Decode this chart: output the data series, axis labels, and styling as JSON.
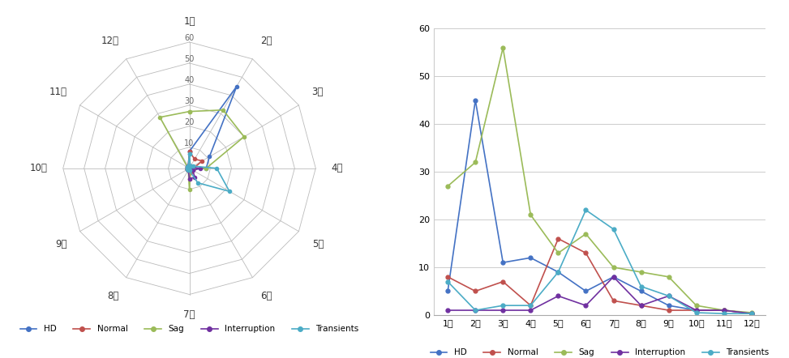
{
  "categories": [
    "1차",
    "2차",
    "3차",
    "4차",
    "5차",
    "6차",
    "7차",
    "8차",
    "9차",
    "10차",
    "11차",
    "12차"
  ],
  "series": {
    "HD": [
      5,
      45,
      11,
      12,
      9,
      5,
      8,
      5,
      2,
      1,
      1,
      0.3
    ],
    "Normal": [
      8,
      5,
      7,
      2,
      16,
      13,
      3,
      2,
      1,
      1,
      1,
      0.3
    ],
    "Sag": [
      27,
      32,
      56,
      21,
      13,
      17,
      10,
      9,
      8,
      2,
      1,
      0.5
    ],
    "Interruption": [
      1,
      1,
      1,
      1,
      4,
      2,
      8,
      2,
      4,
      1,
      1,
      0.3
    ],
    "Transients": [
      7,
      1,
      2,
      2,
      9,
      22,
      18,
      6,
      4,
      0.5,
      0.3,
      0.3
    ]
  },
  "radar_series": {
    "HD": [
      8,
      45,
      11,
      8,
      1,
      1,
      1,
      1,
      1,
      1,
      1,
      1
    ],
    "Normal": [
      8,
      5,
      7,
      2,
      1,
      2,
      5,
      1,
      1,
      1,
      1,
      1
    ],
    "Sag": [
      27,
      32,
      30,
      8,
      1,
      1,
      10,
      1,
      1,
      1,
      1,
      28
    ],
    "Interruption": [
      1,
      1,
      1,
      5,
      2,
      5,
      5,
      1,
      1,
      1,
      1,
      1
    ],
    "Transients": [
      7,
      1,
      2,
      13,
      22,
      8,
      1,
      1,
      1,
      1,
      1,
      1
    ]
  },
  "colors": {
    "HD": "#4472C4",
    "Normal": "#C0504D",
    "Sag": "#9BBB59",
    "Interruption": "#7030A0",
    "Transients": "#4BACC6"
  },
  "radar_max": 60,
  "radar_rings": [
    10,
    20,
    30,
    40,
    50,
    60
  ],
  "line_ylim": [
    0,
    60
  ],
  "line_yticks": [
    0,
    10,
    20,
    30,
    40,
    50,
    60
  ]
}
